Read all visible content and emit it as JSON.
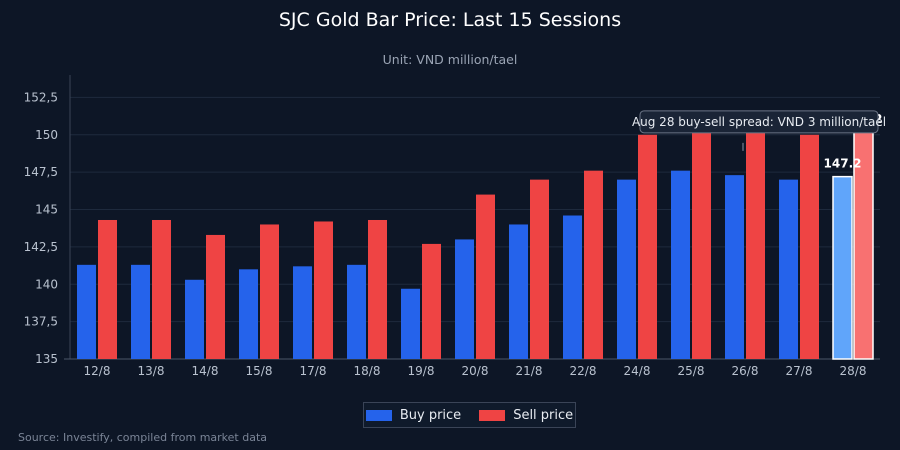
{
  "chart_data": {
    "type": "bar",
    "title": "SJC Gold Bar Price: Last 15 Sessions",
    "subtitle": "Unit: VND million/tael",
    "categories": [
      "12/8",
      "13/8",
      "14/8",
      "15/8",
      "17/8",
      "18/8",
      "19/8",
      "20/8",
      "21/8",
      "22/8",
      "24/8",
      "25/8",
      "26/8",
      "27/8",
      "28/8"
    ],
    "series": [
      {
        "name": "Buy price",
        "color": "#2563eb",
        "highlight_color": "#60a5fa",
        "values": [
          141.3,
          141.3,
          140.3,
          141.0,
          141.2,
          141.3,
          139.7,
          143.0,
          144.0,
          144.6,
          147.0,
          147.6,
          147.3,
          147.0,
          147.2
        ]
      },
      {
        "name": "Sell price",
        "color": "#ef4444",
        "highlight_color": "#f87171",
        "values": [
          144.3,
          144.3,
          143.3,
          144.0,
          144.2,
          144.3,
          142.7,
          146.0,
          147.0,
          147.6,
          150.0,
          150.6,
          150.3,
          150.0,
          150.2
        ]
      }
    ],
    "highlight_index": 14,
    "data_labels": [
      {
        "series": 0,
        "index": 14,
        "text": "147.2"
      },
      {
        "series": 1,
        "index": 14,
        "text": "150.2"
      }
    ],
    "y_ticks": [
      "135",
      "137,5",
      "140",
      "142,5",
      "145",
      "147,5",
      "150",
      "152,5"
    ],
    "y_tick_values": [
      135,
      137.5,
      140,
      142.5,
      145,
      147.5,
      150,
      152.5
    ],
    "ylim": [
      135,
      154
    ],
    "xlabel": "",
    "ylabel": "",
    "grid": true,
    "legend_position": "bottom",
    "annotation": {
      "text": "Aug 28 buy-sell spread: VND 3 million/tael",
      "index": 12,
      "value": 150.8
    },
    "source": "Source: Investify, compiled from market data"
  }
}
